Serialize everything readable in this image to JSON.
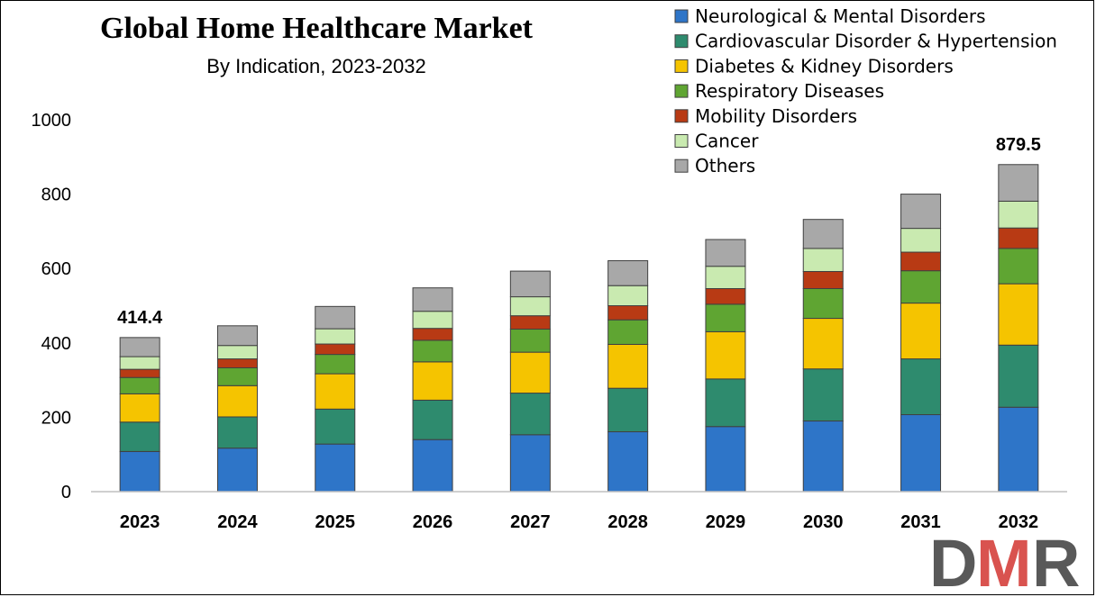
{
  "chart_data": {
    "type": "bar",
    "stacked": true,
    "title": "Global Home Healthcare Market",
    "subtitle": "By Indication, 2023-2032",
    "categories": [
      "2023",
      "2024",
      "2025",
      "2026",
      "2027",
      "2028",
      "2029",
      "2030",
      "2031",
      "2032"
    ],
    "yticks": [
      "0",
      "200",
      "400",
      "600",
      "800",
      "1000"
    ],
    "ylim": [
      0,
      1000
    ],
    "grid": false,
    "legend_position": "top-right",
    "series": [
      {
        "name": "Neurological & Mental Disorders",
        "color": "#2e75c8",
        "values": [
          108,
          117,
          128,
          140,
          153,
          161,
          175,
          190,
          207,
          227
        ]
      },
      {
        "name": "Cardiovascular Disorder & Hypertension",
        "color": "#2e8b6e",
        "values": [
          79,
          84,
          94,
          106,
          112,
          117,
          128,
          140,
          150,
          167
        ]
      },
      {
        "name": "Diabetes & Kidney Disorders",
        "color": "#f5c400",
        "values": [
          76,
          84,
          95,
          103,
          110,
          118,
          127,
          136,
          150,
          165
        ]
      },
      {
        "name": "Respiratory Diseases",
        "color": "#5fa532",
        "values": [
          44,
          48,
          52,
          58,
          62,
          66,
          74,
          80,
          87,
          95
        ]
      },
      {
        "name": "Mobility Disorders",
        "color": "#b83a14",
        "values": [
          22,
          24,
          28,
          32,
          36,
          38,
          42,
          46,
          50,
          55
        ]
      },
      {
        "name": "Cancer",
        "color": "#c9eab0",
        "values": [
          34,
          36,
          41,
          46,
          51,
          54,
          60,
          62,
          64,
          72
        ]
      },
      {
        "name": "Others",
        "color": "#a8a8a8",
        "values": [
          51.4,
          53,
          60,
          63,
          69,
          67,
          72,
          78,
          92,
          98.5
        ]
      }
    ],
    "annotations": [
      {
        "category": "2023",
        "text": "414.4"
      },
      {
        "category": "2032",
        "text": "879.5"
      }
    ]
  },
  "logo": {
    "text_d": "D",
    "text_m": "M",
    "text_r": "R"
  }
}
